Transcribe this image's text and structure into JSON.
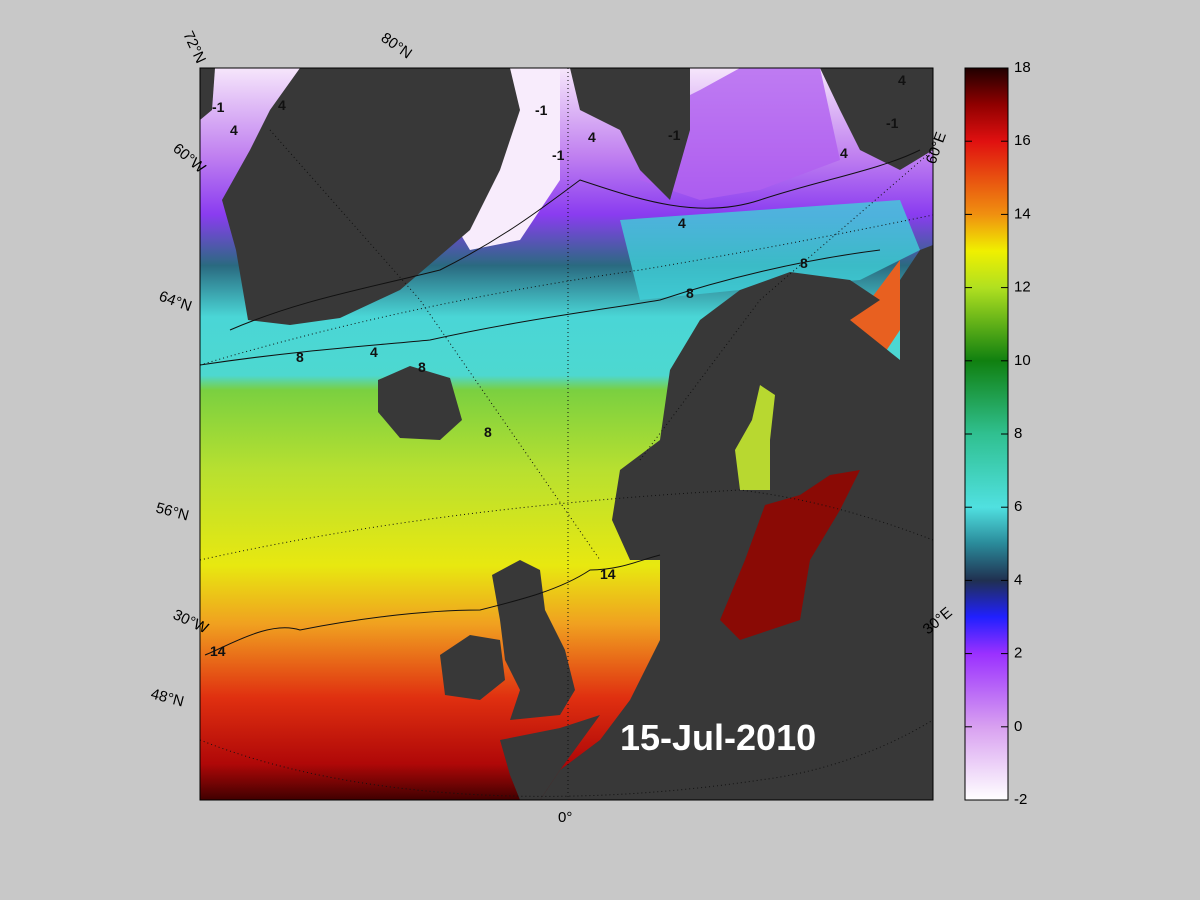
{
  "map": {
    "graticule_labels": [
      "72°N",
      "80°N",
      "60°W",
      "64°N",
      "56°N",
      "30°W",
      "48°N",
      "0°",
      "60°E",
      "30°E"
    ],
    "contour_labels": [
      "-1",
      "4",
      "4",
      "-1",
      "-1",
      "4",
      "-1",
      "4",
      "4",
      "-1",
      "4",
      "8",
      "8",
      "8",
      "8",
      "8",
      "4",
      "14",
      "14"
    ],
    "date": "15-Jul-2010"
  },
  "colorbar": {
    "lim": [
      -2,
      18
    ],
    "ticks": [
      -2,
      0,
      2,
      4,
      6,
      8,
      10,
      12,
      14,
      16,
      18
    ]
  }
}
